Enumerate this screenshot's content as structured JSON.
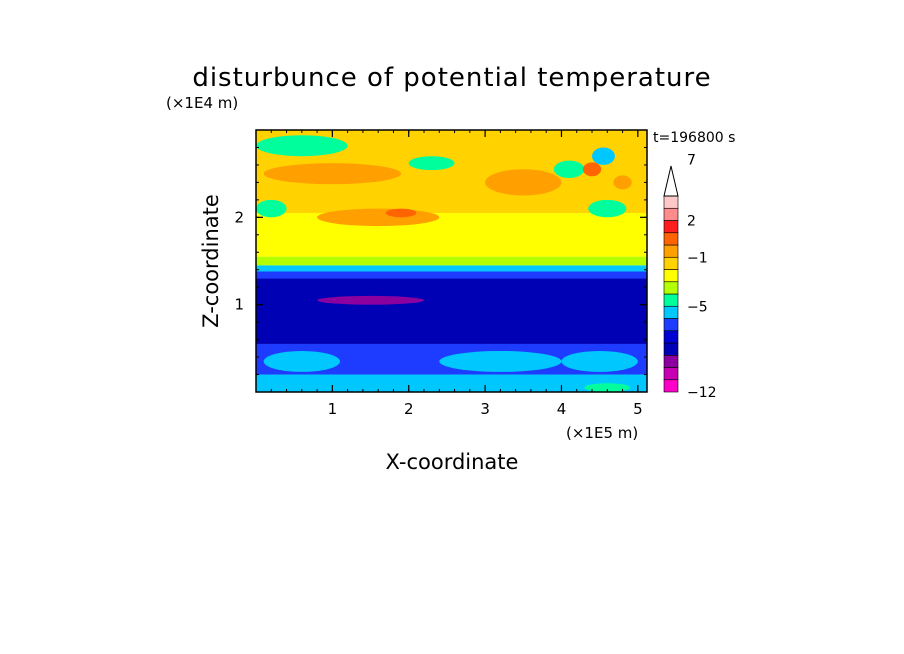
{
  "chart_data": {
    "type": "heatmap",
    "title": "disturbunce of potential temperature",
    "xlabel": "X-coordinate",
    "ylabel": "Z-coordinate",
    "x_unit": "(×1E5 m)",
    "y_unit": "(×1E4 m)",
    "time_label": "t=196800 s",
    "xlim": [
      0,
      5.12
    ],
    "ylim": [
      0,
      3.0
    ],
    "x_ticks": [
      1,
      2,
      3,
      4,
      5
    ],
    "y_ticks": [
      1,
      2
    ],
    "colorbar": {
      "extend_max": true,
      "labels": [
        {
          "value": 7,
          "text": "7"
        },
        {
          "value": 2,
          "text": "2"
        },
        {
          "value": -1,
          "text": "−1"
        },
        {
          "value": -5,
          "text": "−5"
        },
        {
          "value": -12,
          "text": "−12"
        }
      ],
      "colors": [
        "#ff00c8",
        "#c800b4",
        "#8c00a0",
        "#0000b4",
        "#0000d2",
        "#1e3cff",
        "#00c8ff",
        "#00ff9c",
        "#b4ff00",
        "#ffff00",
        "#ffd200",
        "#ffa000",
        "#ff6400",
        "#ff1e1e",
        "#ff8c8c",
        "#ffc8c8"
      ]
    },
    "bands": [
      {
        "z": [
          0.0,
          0.2
        ],
        "color": "#00c8ff"
      },
      {
        "z": [
          0.2,
          0.55
        ],
        "color": "#1e3cff"
      },
      {
        "z": [
          0.55,
          1.3
        ],
        "color": "#0000b4"
      },
      {
        "z": [
          1.3,
          1.38
        ],
        "color": "#1e3cff"
      },
      {
        "z": [
          1.38,
          1.45
        ],
        "color": "#00c8ff"
      },
      {
        "z": [
          1.45,
          1.55
        ],
        "color": "#b4ff00"
      },
      {
        "z": [
          1.55,
          2.05
        ],
        "color": "#ffff00"
      },
      {
        "z": [
          2.05,
          3.0
        ],
        "color": "#ffd200"
      }
    ],
    "features": [
      {
        "x": 1.0,
        "z": 2.5,
        "rx": 0.9,
        "rz": 0.12,
        "color": "#ffa000"
      },
      {
        "x": 0.6,
        "z": 2.82,
        "rx": 0.6,
        "rz": 0.12,
        "color": "#00ff9c"
      },
      {
        "x": 2.3,
        "z": 2.62,
        "rx": 0.3,
        "rz": 0.08,
        "color": "#00ff9c"
      },
      {
        "x": 1.6,
        "z": 2.0,
        "rx": 0.8,
        "rz": 0.1,
        "color": "#ffa000"
      },
      {
        "x": 1.9,
        "z": 2.05,
        "rx": 0.2,
        "rz": 0.05,
        "color": "#ff6400"
      },
      {
        "x": 0.2,
        "z": 2.1,
        "rx": 0.2,
        "rz": 0.1,
        "color": "#00ff9c"
      },
      {
        "x": 3.5,
        "z": 2.4,
        "rx": 0.5,
        "rz": 0.15,
        "color": "#ffa000"
      },
      {
        "x": 4.1,
        "z": 2.55,
        "rx": 0.2,
        "rz": 0.1,
        "color": "#00ff9c"
      },
      {
        "x": 4.6,
        "z": 2.1,
        "rx": 0.25,
        "rz": 0.1,
        "color": "#00ff9c"
      },
      {
        "x": 4.55,
        "z": 2.7,
        "rx": 0.15,
        "rz": 0.1,
        "color": "#00c8ff"
      },
      {
        "x": 4.4,
        "z": 2.55,
        "rx": 0.12,
        "rz": 0.08,
        "color": "#ff6400"
      },
      {
        "x": 4.8,
        "z": 2.4,
        "rx": 0.12,
        "rz": 0.08,
        "color": "#ffa000"
      },
      {
        "x": 1.5,
        "z": 1.05,
        "rx": 0.7,
        "rz": 0.05,
        "color": "#8c00a0"
      },
      {
        "x": 0.6,
        "z": 0.35,
        "rx": 0.5,
        "rz": 0.12,
        "color": "#00c8ff"
      },
      {
        "x": 3.2,
        "z": 0.35,
        "rx": 0.8,
        "rz": 0.12,
        "color": "#00c8ff"
      },
      {
        "x": 4.5,
        "z": 0.35,
        "rx": 0.5,
        "rz": 0.12,
        "color": "#00c8ff"
      },
      {
        "x": 4.6,
        "z": 0.05,
        "rx": 0.3,
        "rz": 0.05,
        "color": "#00ff9c"
      }
    ]
  }
}
